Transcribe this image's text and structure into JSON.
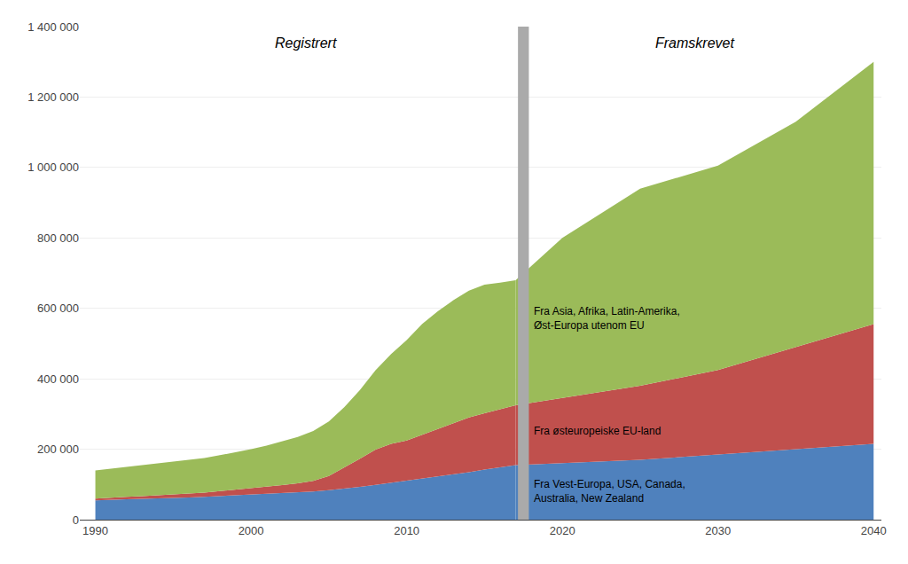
{
  "chart_data": {
    "type": "area",
    "stacked": true,
    "x_hist": [
      1990,
      1991,
      1992,
      1993,
      1994,
      1995,
      1996,
      1997,
      1998,
      1999,
      2000,
      2001,
      2002,
      2003,
      2004,
      2005,
      2006,
      2007,
      2008,
      2009,
      2010,
      2011,
      2012,
      2013,
      2014,
      2015,
      2016,
      2017
    ],
    "x_proj": [
      2017,
      2020,
      2025,
      2030,
      2035,
      2040
    ],
    "series": [
      {
        "name": "Fra Vest-Europa, USA, Canada,\nAustralia, New Zealand",
        "color": "#4F81BD",
        "values": [
          55000,
          57000,
          58000,
          59000,
          60000,
          62000,
          63000,
          65000,
          67000,
          69000,
          71000,
          73000,
          75000,
          77000,
          80000,
          84000,
          88000,
          93000,
          99000,
          105000,
          110000,
          116000,
          122000,
          128000,
          135000,
          142000,
          148000,
          155000
        ],
        "values_proj": [
          155000,
          160000,
          170000,
          185000,
          200000,
          215000
        ]
      },
      {
        "name": "Fra østeuropeiske EU-land",
        "color": "#C0504D",
        "values": [
          5000,
          6000,
          7000,
          8000,
          9000,
          10000,
          11000,
          12000,
          14000,
          16000,
          18000,
          20000,
          23000,
          26000,
          30000,
          40000,
          60000,
          80000,
          100000,
          110000,
          115000,
          125000,
          135000,
          145000,
          155000,
          160000,
          165000,
          170000
        ],
        "values_proj": [
          170000,
          185000,
          210000,
          240000,
          290000,
          340000
        ]
      },
      {
        "name": "Fra Asia, Afrika, Latin-Amerika,\nØst-Europa utenom EU",
        "color": "#9BBB59",
        "values": [
          80000,
          82000,
          85000,
          88000,
          90000,
          92000,
          95000,
          98000,
          102000,
          106000,
          111000,
          117000,
          124000,
          132000,
          142000,
          155000,
          172000,
          195000,
          225000,
          255000,
          285000,
          315000,
          335000,
          350000,
          360000,
          365000,
          360000,
          355000
        ],
        "values_proj": [
          355000,
          455000,
          560000,
          580000,
          640000,
          745000
        ]
      }
    ],
    "divider": 2017.5,
    "annotations": [
      "Registrert",
      "Framskrevet"
    ],
    "xlim": [
      1989,
      2040.5
    ],
    "xticks": [
      1990,
      2000,
      2010,
      2020,
      2030,
      2040
    ],
    "ylim": [
      0,
      1400000
    ],
    "yticks": [
      0,
      {
        "value": 200000,
        "label": "200 000"
      },
      {
        "value": 400000,
        "label": "400 000"
      },
      {
        "value": 600000,
        "label": "600 000"
      },
      {
        "value": 800000,
        "label": "800 000"
      },
      {
        "value": 1000000,
        "label": "1 000 000"
      },
      {
        "value": 1200000,
        "label": "1 200 000"
      },
      {
        "value": 1400000,
        "label": "1 400 000"
      }
    ],
    "grid": "y"
  }
}
